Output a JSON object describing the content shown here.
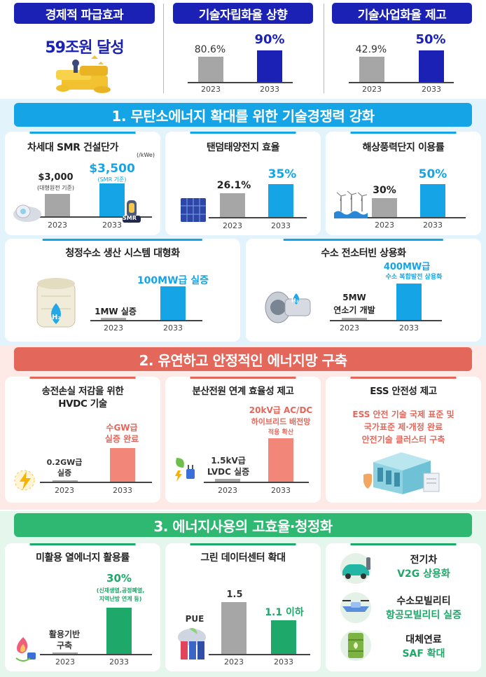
{
  "top": {
    "panels": [
      {
        "title": "경제적 파급효과",
        "headline": "59조원 달성"
      },
      {
        "title": "기술자립화율 상향",
        "v1": "80.6%",
        "v2": "90%",
        "y1": "2023",
        "y2": "2033"
      },
      {
        "title": "기술사업화율 제고",
        "v1": "42.9%",
        "v2": "50%",
        "y1": "2023",
        "y2": "2033"
      }
    ]
  },
  "sections": {
    "s1": "1. 무탄소에너지 확대를 위한 기술경쟁력 강화",
    "s2": "2. 유연하고 안정적인 에너지망 구축",
    "s3": "3. 에너지사용의 고효율·청정화"
  },
  "s1": {
    "smr": {
      "title": "차세대 SMR 건설단가",
      "unit": "(/kWe)",
      "v1": "$3,000",
      "n1": "(대형원전 기준)",
      "v2": "$3,500",
      "n2": "(SMR 기준)",
      "badge": "SMR",
      "y1": "2023",
      "y2": "2033"
    },
    "tandem": {
      "title": "탠덤태양전지 효율",
      "v1": "26.1%",
      "v2": "35%",
      "y1": "2023",
      "y2": "2033"
    },
    "wind": {
      "title": "해상풍력단지 이용률",
      "v1": "30%",
      "v2": "50%",
      "y1": "2023",
      "y2": "2033"
    },
    "h2": {
      "title": "청정수소 생산 시스템 대형화",
      "v1": "1MW 실증",
      "v2": "100MW급 실증",
      "badge": "H₂",
      "y1": "2023",
      "y2": "2033"
    },
    "turbine": {
      "title": "수소 전소터빈 상용화",
      "v1a": "5MW",
      "v1b": "연소기 개발",
      "v2a": "400MW급",
      "v2b": "수소 복합발전 상용화",
      "badge": "H₂",
      "y1": "2023",
      "y2": "2033"
    }
  },
  "s2": {
    "hvdc": {
      "title1": "송전손실 저감을 위한",
      "title2": "HVDC 기술",
      "v1a": "0.2GW급",
      "v1b": "실증",
      "v2a": "수GW급",
      "v2b": "실증 완료",
      "y1": "2023",
      "y2": "2033"
    },
    "dist": {
      "title": "분산전원 연계 효율성 제고",
      "v1a": "1.5kV급",
      "v1b": "LVDC 실증",
      "v2a": "20kV급 AC/DC",
      "v2b": "하이브리드 배전망",
      "v2c": "적용 확산",
      "y1": "2023",
      "y2": "2033"
    },
    "ess": {
      "title": "ESS 안전성 제고",
      "l1": "ESS 안전 기술 국제 표준 및",
      "l2": "국가표준 제·개정 완료",
      "l3": "안전기술 클러스터 구축"
    }
  },
  "s3": {
    "heat": {
      "title": "미활용 열에너지 활용률",
      "v1a": "활용기반",
      "v1b": "구축",
      "v2": "30%",
      "n2a": "(신재생열,공정폐열,",
      "n2b": "지역난방 연계 등)",
      "y1": "2023",
      "y2": "2033"
    },
    "dc": {
      "title": "그린 데이터센터 확대",
      "axis": "PUE",
      "v1": "1.5",
      "v2": "1.1 이하",
      "y1": "2023",
      "y2": "2033"
    },
    "mob": [
      {
        "title": "전기차",
        "value": "V2G 상용화"
      },
      {
        "title": "수소모빌리티",
        "value": "항공모빌리티 실증"
      },
      {
        "title": "대체연료",
        "value": "SAF 확대"
      }
    ]
  },
  "colors": {
    "navy": "#1a21b4",
    "blue": "#15a5e6",
    "red": "#e4675b",
    "green": "#1ea869",
    "gray": "#a6a6a6"
  }
}
